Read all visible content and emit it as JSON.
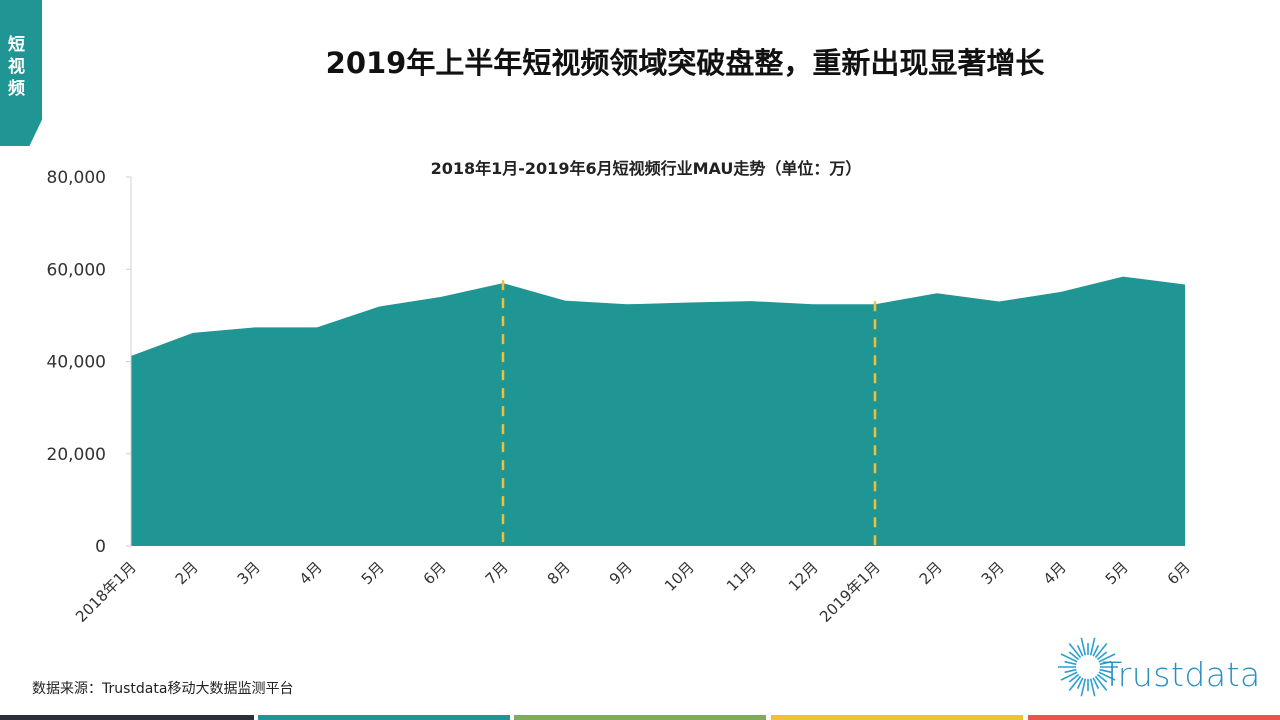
{
  "side_tag": "短视频",
  "page_title": "2019年上半年短视频领域突破盘整，重新出现显著增长",
  "source": "数据来源：Trustdata移动大数据监测平台",
  "logo": "Trustdata",
  "colors": {
    "area": "#1f9594",
    "marker_line": "#f2c037",
    "bottom_bars": [
      "#2b2f38",
      "#1f9594",
      "#7fae52",
      "#f2c037",
      "#e9554a"
    ]
  },
  "chart_data": {
    "type": "area",
    "title": "2018年1月-2019年6月短视频行业MAU走势（单位：万）",
    "categories": [
      "2018年1月",
      "2月",
      "3月",
      "4月",
      "5月",
      "6月",
      "7月",
      "8月",
      "9月",
      "10月",
      "11月",
      "12月",
      "2019年1月",
      "2月",
      "3月",
      "4月",
      "5月",
      "6月"
    ],
    "values": [
      41200,
      46200,
      47400,
      47400,
      51900,
      54000,
      57000,
      53200,
      52400,
      52800,
      53100,
      52400,
      52400,
      54800,
      53000,
      55100,
      58400,
      56700
    ],
    "ylim": [
      0,
      80000
    ],
    "yticks": [
      "0",
      "20,000",
      "40,000",
      "60,000",
      "80,000"
    ],
    "grid": false,
    "markers": [
      "7月",
      "2019年1月"
    ]
  }
}
